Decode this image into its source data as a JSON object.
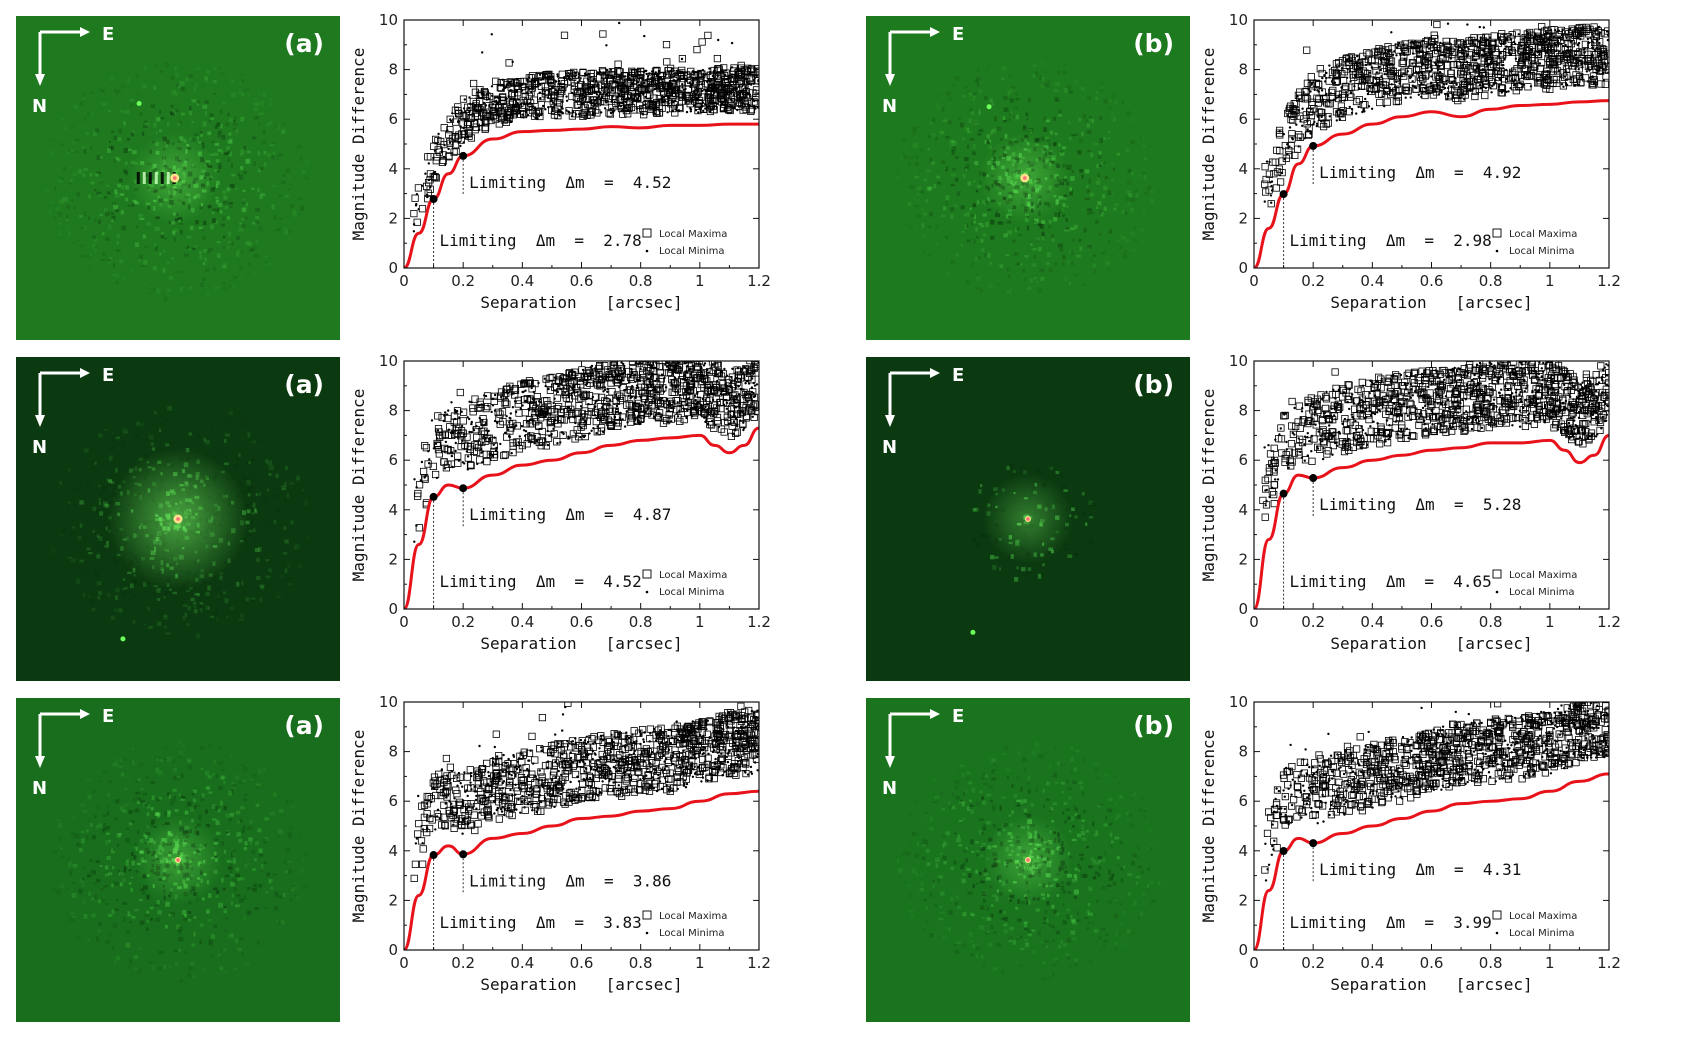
{
  "images": [
    {
      "label": "(a)",
      "bg": "#1f7a1f",
      "compass": {
        "east": "E",
        "north": "N"
      },
      "star": {
        "fx": 0.49,
        "fy": 0.5
      },
      "companion": {
        "fx": 0.38,
        "fy": 0.27
      },
      "style": "ring"
    },
    {
      "label": "(b)",
      "bg": "#1e7a1e",
      "compass": {
        "east": "E",
        "north": "N"
      },
      "star": {
        "fx": 0.49,
        "fy": 0.5
      },
      "companion": {
        "fx": 0.38,
        "fy": 0.28
      },
      "style": "speckle"
    },
    {
      "label": "(a)",
      "bg": "#0c3a10",
      "compass": {
        "east": "E",
        "north": "N"
      },
      "star": {
        "fx": 0.5,
        "fy": 0.5
      },
      "companion": {
        "fx": 0.33,
        "fy": 0.87
      },
      "style": "halo"
    },
    {
      "label": "(b)",
      "bg": "#0b3a10",
      "compass": {
        "east": "E",
        "north": "N"
      },
      "star": {
        "fx": 0.5,
        "fy": 0.5
      },
      "companion": {
        "fx": 0.33,
        "fy": 0.85
      },
      "style": "point"
    },
    {
      "label": "(a)",
      "bg": "#186e1c",
      "compass": {
        "east": "E",
        "north": "N"
      },
      "star": {
        "fx": 0.5,
        "fy": 0.5
      },
      "companion": null,
      "style": "faint"
    },
    {
      "label": "(b)",
      "bg": "#1a741e",
      "compass": {
        "east": "E",
        "north": "N"
      },
      "star": {
        "fx": 0.5,
        "fy": 0.5
      },
      "companion": null,
      "style": "faint"
    }
  ],
  "chart_data": [
    {
      "type": "scatter",
      "xlabel": "Separation   [arcsec]",
      "ylabel": "Magnitude Difference",
      "xlim": [
        0,
        1.2
      ],
      "ylim": [
        0,
        10
      ],
      "xticks": [
        "0",
        "0.2",
        "0.4",
        "0.6",
        "0.8",
        "1",
        "1.2"
      ],
      "yticks": [
        "0",
        "2",
        "4",
        "6",
        "8",
        "10"
      ],
      "legend": {
        "maxima": "Local Maxima",
        "minima": "Local Minima",
        "position": "bottom-right"
      },
      "limit_labels": {
        "at_0.1": "Limiting  Δm  =  2.78",
        "at_0.2": "Limiting  Δm  =  4.52"
      },
      "limits": [
        {
          "x": 0.1,
          "y": 2.78
        },
        {
          "x": 0.2,
          "y": 4.52
        }
      ],
      "curve": {
        "color": "#e8121b",
        "x": [
          0,
          0.05,
          0.1,
          0.15,
          0.2,
          0.3,
          0.4,
          0.5,
          0.6,
          0.7,
          0.8,
          0.9,
          1.0,
          1.1,
          1.2
        ],
        "y": [
          0,
          1.4,
          2.78,
          3.8,
          4.52,
          5.2,
          5.5,
          5.55,
          5.6,
          5.7,
          5.65,
          5.75,
          5.75,
          5.8,
          5.8
        ]
      },
      "scatter": {
        "floor_offset": 0.5,
        "spread": 1.8,
        "outlier_rate": 0.03
      }
    },
    {
      "type": "scatter",
      "xlabel": "Separation   [arcsec]",
      "ylabel": "Magnitude Difference",
      "xlim": [
        0,
        1.2
      ],
      "ylim": [
        0,
        10
      ],
      "xticks": [
        "0",
        "0.2",
        "0.4",
        "0.6",
        "0.8",
        "1",
        "1.2"
      ],
      "yticks": [
        "0",
        "2",
        "4",
        "6",
        "8",
        "10"
      ],
      "legend": {
        "maxima": "Local Maxima",
        "minima": "Local Minima",
        "position": "bottom-right"
      },
      "limit_labels": {
        "at_0.1": "Limiting  Δm  =  2.98",
        "at_0.2": "Limiting  Δm  =  4.92"
      },
      "limits": [
        {
          "x": 0.1,
          "y": 2.98
        },
        {
          "x": 0.2,
          "y": 4.92
        }
      ],
      "curve": {
        "color": "#e8121b",
        "x": [
          0,
          0.05,
          0.1,
          0.15,
          0.2,
          0.3,
          0.4,
          0.5,
          0.6,
          0.7,
          0.8,
          0.9,
          1.0,
          1.1,
          1.2
        ],
        "y": [
          0,
          1.6,
          2.98,
          4.2,
          4.92,
          5.4,
          5.8,
          6.1,
          6.3,
          6.1,
          6.4,
          6.55,
          6.6,
          6.7,
          6.75
        ]
      },
      "scatter": {
        "floor_offset": 0.6,
        "spread": 2.4,
        "outlier_rate": 0.04
      }
    },
    {
      "type": "scatter",
      "xlabel": "Separation   [arcsec]",
      "ylabel": "Magnitude Difference",
      "xlim": [
        0,
        1.2
      ],
      "ylim": [
        0,
        10
      ],
      "xticks": [
        "0",
        "0.2",
        "0.4",
        "0.6",
        "0.8",
        "1",
        "1.2"
      ],
      "yticks": [
        "0",
        "2",
        "4",
        "6",
        "8",
        "10"
      ],
      "legend": {
        "maxima": "Local Maxima",
        "minima": "Local Minima",
        "position": "bottom-right"
      },
      "limit_labels": {
        "at_0.1": "Limiting  Δm  =  4.52",
        "at_0.2": "Limiting  Δm  =  4.87"
      },
      "limits": [
        {
          "x": 0.1,
          "y": 4.52
        },
        {
          "x": 0.2,
          "y": 4.87
        }
      ],
      "curve": {
        "color": "#e8121b",
        "x": [
          0,
          0.05,
          0.1,
          0.15,
          0.2,
          0.3,
          0.4,
          0.5,
          0.6,
          0.7,
          0.8,
          0.9,
          1.0,
          1.05,
          1.1,
          1.15,
          1.2
        ],
        "y": [
          0,
          2.6,
          4.52,
          5.0,
          4.87,
          5.4,
          5.8,
          6.0,
          6.3,
          6.6,
          6.8,
          6.9,
          7.0,
          6.6,
          6.3,
          6.6,
          7.3
        ]
      },
      "scatter": {
        "floor_offset": 0.6,
        "spread": 2.8,
        "outlier_rate": 0.03
      }
    },
    {
      "type": "scatter",
      "xlabel": "Separation   [arcsec]",
      "ylabel": "Magnitude Difference",
      "xlim": [
        0,
        1.2
      ],
      "ylim": [
        0,
        10
      ],
      "xticks": [
        "0",
        "0.2",
        "0.4",
        "0.6",
        "0.8",
        "1",
        "1.2"
      ],
      "yticks": [
        "0",
        "2",
        "4",
        "6",
        "8",
        "10"
      ],
      "legend": {
        "maxima": "Local Maxima",
        "minima": "Local Minima",
        "position": "bottom-right"
      },
      "limit_labels": {
        "at_0.1": "Limiting  Δm  =  4.65",
        "at_0.2": "Limiting  Δm  =  5.28"
      },
      "limits": [
        {
          "x": 0.1,
          "y": 4.65
        },
        {
          "x": 0.2,
          "y": 5.28
        }
      ],
      "curve": {
        "color": "#e8121b",
        "x": [
          0,
          0.05,
          0.1,
          0.15,
          0.2,
          0.3,
          0.4,
          0.5,
          0.6,
          0.7,
          0.8,
          0.9,
          1.0,
          1.05,
          1.1,
          1.15,
          1.2
        ],
        "y": [
          0,
          2.8,
          4.65,
          5.4,
          5.28,
          5.7,
          6.0,
          6.2,
          6.4,
          6.5,
          6.7,
          6.7,
          6.8,
          6.4,
          5.9,
          6.2,
          7.0
        ]
      },
      "scatter": {
        "floor_offset": 0.6,
        "spread": 2.7,
        "outlier_rate": 0.03
      }
    },
    {
      "type": "scatter",
      "xlabel": "Separation   [arcsec]",
      "ylabel": "Magnitude Difference",
      "xlim": [
        0,
        1.2
      ],
      "ylim": [
        0,
        10
      ],
      "xticks": [
        "0",
        "0.2",
        "0.4",
        "0.6",
        "0.8",
        "1",
        "1.2"
      ],
      "yticks": [
        "0",
        "2",
        "4",
        "6",
        "8",
        "10"
      ],
      "legend": {
        "maxima": "Local Maxima",
        "minima": "Local Minima",
        "position": "bottom-right"
      },
      "limit_labels": {
        "at_0.1": "Limiting  Δm  =  3.83",
        "at_0.2": "Limiting  Δm  =  3.86"
      },
      "limits": [
        {
          "x": 0.1,
          "y": 3.83
        },
        {
          "x": 0.2,
          "y": 3.86
        }
      ],
      "curve": {
        "color": "#e8121b",
        "x": [
          0,
          0.05,
          0.1,
          0.15,
          0.2,
          0.3,
          0.4,
          0.5,
          0.6,
          0.7,
          0.8,
          0.9,
          1.0,
          1.1,
          1.2
        ],
        "y": [
          0,
          2.2,
          3.83,
          4.2,
          3.86,
          4.5,
          4.7,
          5.0,
          5.3,
          5.4,
          5.6,
          5.7,
          6.0,
          6.3,
          6.4
        ]
      },
      "scatter": {
        "floor_offset": 0.7,
        "spread": 2.6,
        "outlier_rate": 0.05
      }
    },
    {
      "type": "scatter",
      "xlabel": "Separation   [arcsec]",
      "ylabel": "Magnitude Difference",
      "xlim": [
        0,
        1.2
      ],
      "ylim": [
        0,
        10
      ],
      "xticks": [
        "0",
        "0.2",
        "0.4",
        "0.6",
        "0.8",
        "1",
        "1.2"
      ],
      "yticks": [
        "0",
        "2",
        "4",
        "6",
        "8",
        "10"
      ],
      "legend": {
        "maxima": "Local Maxima",
        "minima": "Local Minima",
        "position": "bottom-right"
      },
      "limit_labels": {
        "at_0.1": "Limiting  Δm  =  3.99",
        "at_0.2": "Limiting  Δm  =  4.31"
      },
      "limits": [
        {
          "x": 0.1,
          "y": 3.99
        },
        {
          "x": 0.2,
          "y": 4.31
        }
      ],
      "curve": {
        "color": "#e8121b",
        "x": [
          0,
          0.05,
          0.1,
          0.15,
          0.2,
          0.3,
          0.4,
          0.5,
          0.6,
          0.7,
          0.8,
          0.9,
          1.0,
          1.1,
          1.2
        ],
        "y": [
          0,
          2.4,
          3.99,
          4.5,
          4.31,
          4.7,
          5.0,
          5.3,
          5.6,
          5.9,
          6.0,
          6.1,
          6.4,
          6.8,
          7.1
        ]
      },
      "scatter": {
        "floor_offset": 0.7,
        "spread": 2.6,
        "outlier_rate": 0.06
      }
    }
  ]
}
